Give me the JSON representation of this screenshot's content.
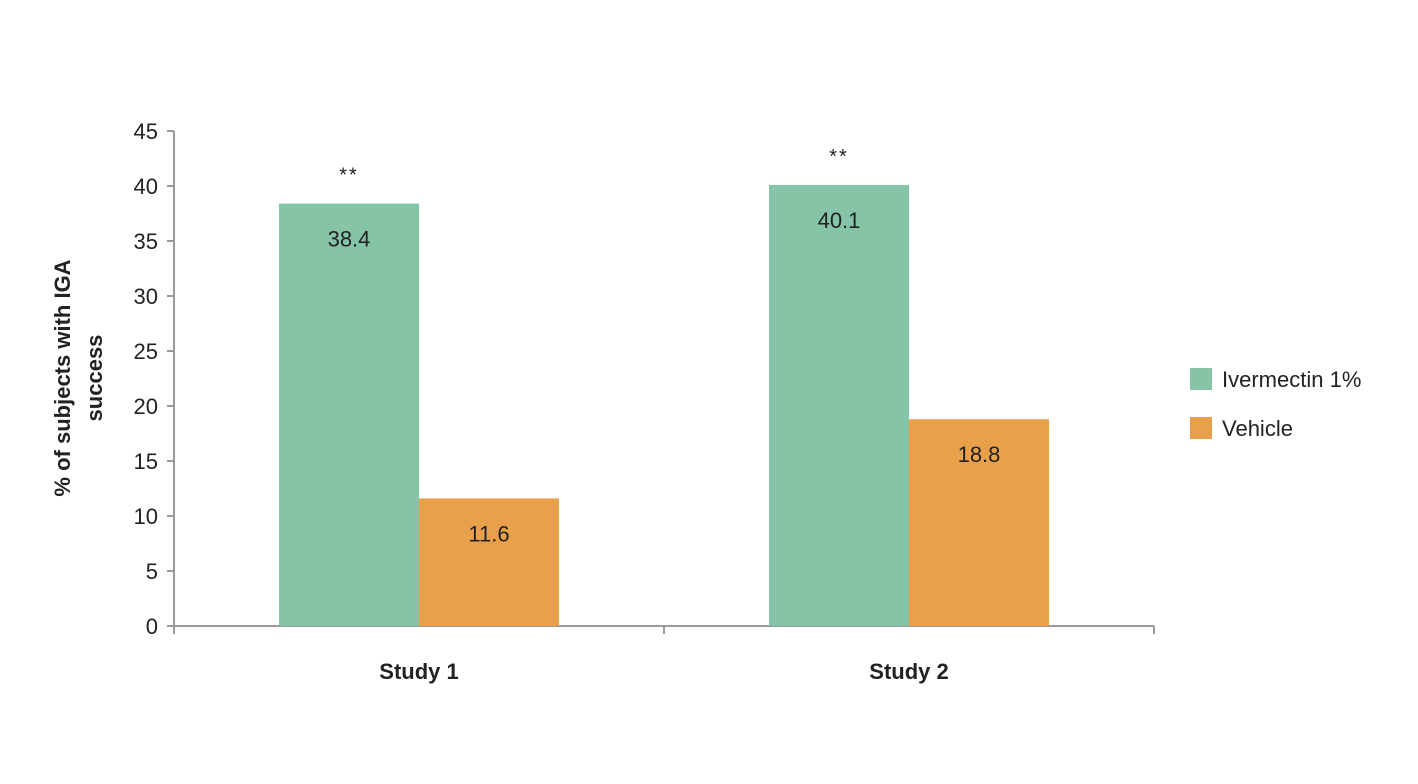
{
  "chart_data": {
    "type": "bar",
    "categories": [
      "Study 1",
      "Study 2"
    ],
    "series": [
      {
        "name": "Ivermectin 1%",
        "color": "#85c4a6",
        "values": [
          38.4,
          40.1
        ],
        "labels": [
          "38.4",
          "40.1"
        ]
      },
      {
        "name": "Vehicle",
        "color": "#e9a04a",
        "values": [
          11.6,
          18.8
        ],
        "labels": [
          "11.6",
          "18.8"
        ]
      }
    ],
    "annotations": [
      "**",
      "**"
    ],
    "ylabel_lines": [
      "% of subjects with IGA",
      "success"
    ],
    "ylim": [
      0,
      45
    ],
    "yticks": [
      0,
      5,
      10,
      15,
      20,
      25,
      30,
      35,
      40,
      45
    ],
    "grid": false,
    "legend": "right"
  }
}
